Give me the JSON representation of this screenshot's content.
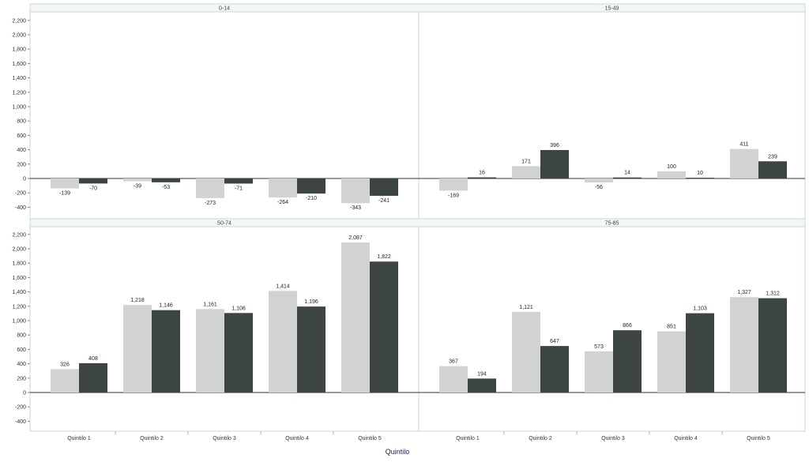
{
  "chart_data": {
    "type": "bar",
    "xlabel": "Quintilo",
    "ylabel": "",
    "ylim": [
      -500,
      2200
    ],
    "yticks": [
      -400,
      -200,
      0,
      200,
      400,
      600,
      800,
      1000,
      1200,
      1400,
      1600,
      1800,
      2000,
      2200
    ],
    "ytick_labels": [
      "-400",
      "-200",
      "0",
      "200",
      "400",
      "600",
      "800",
      "1,000",
      "1,200",
      "1,400",
      "1,600",
      "1,800",
      "2,000",
      "2,200"
    ],
    "categories": [
      "Quintilo 1",
      "Quintilo 2",
      "Quintilo 3",
      "Quintilo 4",
      "Quintilo 5"
    ],
    "colors": [
      "#d0d3d0",
      "#3c4444"
    ],
    "grid": false,
    "legend": "none",
    "panels": [
      {
        "title": "0-14",
        "series": [
          {
            "values": [
              -139,
              -39,
              -273,
              -264,
              -343
            ],
            "labels": [
              "-139",
              "-39",
              "-273",
              "-264",
              "-343"
            ]
          },
          {
            "values": [
              -70,
              -53,
              -71,
              -210,
              -241
            ],
            "labels": [
              "-70",
              "-53",
              "-71",
              "-210",
              "-241"
            ]
          }
        ]
      },
      {
        "title": "15-49",
        "series": [
          {
            "values": [
              -169,
              171,
              -56,
              100,
              411
            ],
            "labels": [
              "-169",
              "171",
              "-56",
              "100",
              "411"
            ]
          },
          {
            "values": [
              16,
              396,
              14,
              10,
              239
            ],
            "labels": [
              "16",
              "396",
              "14",
              "10",
              "239"
            ]
          }
        ]
      },
      {
        "title": "50-74",
        "series": [
          {
            "values": [
              326,
              1218,
              1161,
              1414,
              2087
            ],
            "labels": [
              "326",
              "1,218",
              "1,161",
              "1,414",
              "2,087"
            ]
          },
          {
            "values": [
              408,
              1146,
              1106,
              1196,
              1822
            ],
            "labels": [
              "408",
              "1,146",
              "1,106",
              "1,196",
              "1,822"
            ]
          }
        ]
      },
      {
        "title": "75-85",
        "series": [
          {
            "values": [
              367,
              1121,
              573,
              851,
              1327
            ],
            "labels": [
              "367",
              "1,121",
              "573",
              "851",
              "1,327"
            ]
          },
          {
            "values": [
              194,
              647,
              866,
              1103,
              1312
            ],
            "labels": [
              "194",
              "647",
              "866",
              "1,103",
              "1,312"
            ]
          }
        ]
      }
    ]
  }
}
